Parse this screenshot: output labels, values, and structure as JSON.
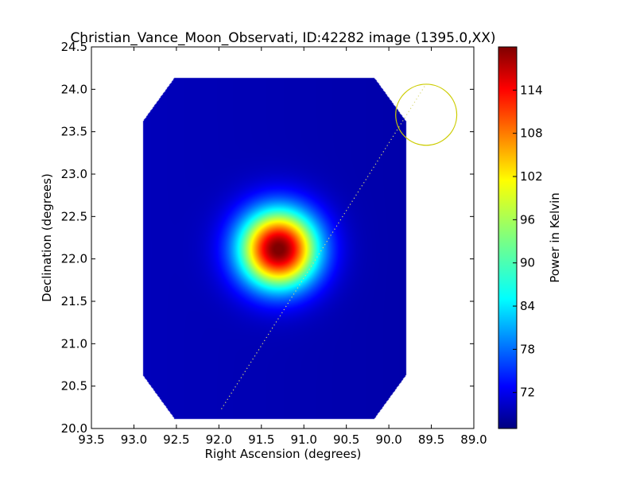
{
  "chart_data": {
    "type": "heatmap",
    "title": "Christian_Vance_Moon_Observati, ID:42282 image (1395.0,XX)",
    "xlabel": "Right Ascension (degrees)",
    "ylabel": "Declination (degrees)",
    "xlim": [
      93.5,
      89.0
    ],
    "ylim": [
      20.0,
      24.5
    ],
    "x_ticks": [
      93.5,
      93.0,
      92.5,
      92.0,
      91.5,
      91.0,
      90.5,
      90.0,
      89.5,
      89.0
    ],
    "x_tick_labels": [
      "93.5",
      "93.0",
      "92.5",
      "92.0",
      "91.5",
      "91.0",
      "90.5",
      "90.0",
      "89.5",
      "89.0"
    ],
    "y_ticks": [
      20.0,
      20.5,
      21.0,
      21.5,
      22.0,
      22.5,
      23.0,
      23.5,
      24.0,
      24.5
    ],
    "y_tick_labels": [
      "20.0",
      "20.5",
      "21.0",
      "21.5",
      "22.0",
      "22.5",
      "23.0",
      "23.5",
      "24.0",
      "24.5"
    ],
    "colorbar": {
      "label": "Power in Kelvin",
      "range": [
        67,
        120
      ],
      "ticks": [
        72,
        78,
        84,
        90,
        96,
        102,
        108,
        114
      ],
      "tick_labels": [
        "72",
        "78",
        "84",
        "90",
        "96",
        "102",
        "108",
        "114"
      ],
      "colormap": "jet"
    },
    "map": {
      "background_value": 69,
      "source_center": [
        91.3,
        22.12
      ],
      "source_peak": 120,
      "source_sigma_deg": 0.32,
      "footprint_ra": [
        92.9,
        89.8
      ],
      "footprint_dec": [
        20.12,
        24.14
      ]
    },
    "path": {
      "style": "dotted",
      "color": "#d9d97a",
      "start": [
        91.97,
        20.23
      ],
      "end": [
        89.57,
        24.05
      ]
    },
    "circle_marker": {
      "center": [
        89.56,
        23.7
      ],
      "radius_deg": 0.36,
      "color": "#cccc00"
    },
    "grid": false
  }
}
